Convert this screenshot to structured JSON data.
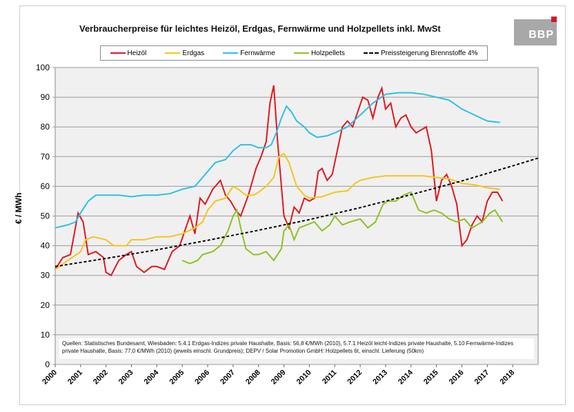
{
  "chart_data": {
    "type": "line",
    "title": "Verbraucherpreise für leichtes Heizöl, Erdgas, Fernwärme und Holzpellets inkl. MwSt",
    "xlabel": "",
    "ylabel": "€ / MWh",
    "xlim": [
      2000,
      2019
    ],
    "ylim": [
      0,
      100
    ],
    "grid": true,
    "legend": "top",
    "xticks": [
      "2000",
      "2001",
      "2002",
      "2003",
      "2004",
      "2005",
      "2006",
      "2007",
      "2008",
      "2009",
      "2010",
      "2011",
      "2012",
      "2013",
      "2014",
      "2015",
      "2016",
      "2017",
      "2018"
    ],
    "yticks": [
      0,
      10,
      20,
      30,
      40,
      50,
      60,
      70,
      80,
      90,
      100
    ],
    "series": [
      {
        "name": "Heizöl",
        "color": "#e3141b",
        "points": [
          [
            2000,
            32
          ],
          [
            2000.3,
            36
          ],
          [
            2000.6,
            37
          ],
          [
            2000.9,
            51
          ],
          [
            2001.1,
            48
          ],
          [
            2001.3,
            37
          ],
          [
            2001.6,
            38
          ],
          [
            2001.9,
            36
          ],
          [
            2002.0,
            31
          ],
          [
            2002.2,
            30
          ],
          [
            2002.5,
            35
          ],
          [
            2002.8,
            37
          ],
          [
            2003.0,
            38
          ],
          [
            2003.2,
            33
          ],
          [
            2003.5,
            31
          ],
          [
            2003.8,
            33
          ],
          [
            2004.0,
            33
          ],
          [
            2004.3,
            32
          ],
          [
            2004.6,
            38
          ],
          [
            2004.9,
            40
          ],
          [
            2005.1,
            45
          ],
          [
            2005.3,
            50
          ],
          [
            2005.5,
            44
          ],
          [
            2005.7,
            56
          ],
          [
            2005.9,
            54
          ],
          [
            2006.2,
            59
          ],
          [
            2006.5,
            62
          ],
          [
            2006.7,
            57
          ],
          [
            2006.9,
            55
          ],
          [
            2007.1,
            52
          ],
          [
            2007.3,
            50
          ],
          [
            2007.6,
            57
          ],
          [
            2007.9,
            66
          ],
          [
            2008.1,
            70
          ],
          [
            2008.3,
            75
          ],
          [
            2008.45,
            88
          ],
          [
            2008.6,
            94
          ],
          [
            2008.75,
            75
          ],
          [
            2008.9,
            60
          ],
          [
            2009.0,
            50
          ],
          [
            2009.2,
            46
          ],
          [
            2009.4,
            53
          ],
          [
            2009.6,
            51
          ],
          [
            2009.8,
            56
          ],
          [
            2010.0,
            55
          ],
          [
            2010.2,
            56
          ],
          [
            2010.35,
            65
          ],
          [
            2010.5,
            66
          ],
          [
            2010.7,
            62
          ],
          [
            2010.9,
            64
          ],
          [
            2011.1,
            72
          ],
          [
            2011.3,
            80
          ],
          [
            2011.5,
            82
          ],
          [
            2011.7,
            80
          ],
          [
            2011.9,
            85
          ],
          [
            2012.1,
            90
          ],
          [
            2012.3,
            89
          ],
          [
            2012.5,
            83
          ],
          [
            2012.7,
            90
          ],
          [
            2012.85,
            93
          ],
          [
            2013.0,
            86
          ],
          [
            2013.2,
            88
          ],
          [
            2013.4,
            80
          ],
          [
            2013.6,
            83
          ],
          [
            2013.8,
            84
          ],
          [
            2014.0,
            80
          ],
          [
            2014.2,
            78
          ],
          [
            2014.4,
            79
          ],
          [
            2014.6,
            80
          ],
          [
            2014.8,
            72
          ],
          [
            2015.0,
            55
          ],
          [
            2015.2,
            62
          ],
          [
            2015.4,
            64
          ],
          [
            2015.6,
            60
          ],
          [
            2015.8,
            54
          ],
          [
            2016.0,
            40
          ],
          [
            2016.2,
            42
          ],
          [
            2016.4,
            47
          ],
          [
            2016.6,
            50
          ],
          [
            2016.8,
            48
          ],
          [
            2017.0,
            55
          ],
          [
            2017.2,
            58
          ],
          [
            2017.4,
            58
          ],
          [
            2017.6,
            55
          ]
        ]
      },
      {
        "name": "Erdgas",
        "color": "#f5c518",
        "points": [
          [
            2000,
            32
          ],
          [
            2000.5,
            35
          ],
          [
            2001.0,
            38
          ],
          [
            2001.2,
            42
          ],
          [
            2001.5,
            43
          ],
          [
            2002.0,
            42
          ],
          [
            2002.3,
            40
          ],
          [
            2002.8,
            40
          ],
          [
            2003.0,
            42
          ],
          [
            2003.5,
            42
          ],
          [
            2004.0,
            43
          ],
          [
            2004.5,
            43
          ],
          [
            2005.0,
            44
          ],
          [
            2005.5,
            46
          ],
          [
            2005.8,
            48
          ],
          [
            2006.0,
            52
          ],
          [
            2006.3,
            55
          ],
          [
            2006.7,
            56
          ],
          [
            2007.0,
            60
          ],
          [
            2007.2,
            59
          ],
          [
            2007.5,
            57
          ],
          [
            2007.8,
            57
          ],
          [
            2008.0,
            58
          ],
          [
            2008.3,
            60
          ],
          [
            2008.6,
            63
          ],
          [
            2008.8,
            70
          ],
          [
            2009.0,
            71
          ],
          [
            2009.2,
            68
          ],
          [
            2009.5,
            60
          ],
          [
            2009.8,
            57
          ],
          [
            2010.0,
            56
          ],
          [
            2010.5,
            56.5
          ],
          [
            2011.0,
            58
          ],
          [
            2011.5,
            58.5
          ],
          [
            2011.8,
            61
          ],
          [
            2012.0,
            62
          ],
          [
            2012.5,
            63
          ],
          [
            2013.0,
            63.5
          ],
          [
            2013.5,
            63.5
          ],
          [
            2014.0,
            63.5
          ],
          [
            2014.5,
            63.5
          ],
          [
            2015.0,
            63
          ],
          [
            2015.5,
            62.5
          ],
          [
            2016.0,
            61
          ],
          [
            2016.5,
            60.5
          ],
          [
            2017.0,
            59.5
          ],
          [
            2017.5,
            59
          ]
        ]
      },
      {
        "name": "Fernwärme",
        "color": "#2ac0e8",
        "points": [
          [
            2000,
            46
          ],
          [
            2000.5,
            47
          ],
          [
            2000.8,
            48
          ],
          [
            2001.0,
            51
          ],
          [
            2001.3,
            55
          ],
          [
            2001.6,
            57
          ],
          [
            2002.0,
            57
          ],
          [
            2002.5,
            57
          ],
          [
            2003.0,
            56.5
          ],
          [
            2003.5,
            57
          ],
          [
            2004.0,
            57
          ],
          [
            2004.5,
            57.5
          ],
          [
            2005.0,
            59
          ],
          [
            2005.5,
            60
          ],
          [
            2005.8,
            63
          ],
          [
            2006.0,
            65
          ],
          [
            2006.3,
            68
          ],
          [
            2006.7,
            69
          ],
          [
            2007.0,
            72
          ],
          [
            2007.3,
            74
          ],
          [
            2007.7,
            74
          ],
          [
            2008.0,
            73
          ],
          [
            2008.3,
            73
          ],
          [
            2008.5,
            74
          ],
          [
            2008.7,
            78
          ],
          [
            2008.9,
            83
          ],
          [
            2009.1,
            87
          ],
          [
            2009.3,
            85
          ],
          [
            2009.5,
            82
          ],
          [
            2009.8,
            80
          ],
          [
            2010.0,
            78
          ],
          [
            2010.3,
            76.5
          ],
          [
            2010.7,
            77
          ],
          [
            2011.0,
            78
          ],
          [
            2011.5,
            80
          ],
          [
            2012.0,
            84
          ],
          [
            2012.5,
            88
          ],
          [
            2013.0,
            91
          ],
          [
            2013.5,
            91.5
          ],
          [
            2014.0,
            91.5
          ],
          [
            2014.5,
            91
          ],
          [
            2015.0,
            90
          ],
          [
            2015.5,
            89
          ],
          [
            2016.0,
            86
          ],
          [
            2016.5,
            84
          ],
          [
            2017.0,
            82
          ],
          [
            2017.5,
            81.5
          ]
        ]
      },
      {
        "name": "Holzpellets",
        "color": "#8cc21e",
        "points": [
          [
            2005.0,
            35
          ],
          [
            2005.3,
            34
          ],
          [
            2005.6,
            35
          ],
          [
            2005.8,
            37
          ],
          [
            2006.2,
            38
          ],
          [
            2006.5,
            40
          ],
          [
            2006.8,
            45
          ],
          [
            2007.0,
            50
          ],
          [
            2007.15,
            52
          ],
          [
            2007.3,
            46
          ],
          [
            2007.5,
            39
          ],
          [
            2007.8,
            37
          ],
          [
            2008.0,
            37
          ],
          [
            2008.3,
            38
          ],
          [
            2008.6,
            35
          ],
          [
            2008.9,
            39
          ],
          [
            2009.0,
            45
          ],
          [
            2009.2,
            47
          ],
          [
            2009.4,
            42
          ],
          [
            2009.6,
            46
          ],
          [
            2009.9,
            47
          ],
          [
            2010.2,
            48
          ],
          [
            2010.5,
            45
          ],
          [
            2010.8,
            47
          ],
          [
            2011.0,
            50
          ],
          [
            2011.3,
            47
          ],
          [
            2011.6,
            48
          ],
          [
            2012.0,
            49
          ],
          [
            2012.3,
            46
          ],
          [
            2012.6,
            48
          ],
          [
            2012.9,
            54
          ],
          [
            2013.1,
            55
          ],
          [
            2013.4,
            55
          ],
          [
            2013.7,
            57
          ],
          [
            2014.0,
            58
          ],
          [
            2014.3,
            52
          ],
          [
            2014.6,
            51
          ],
          [
            2014.9,
            52
          ],
          [
            2015.2,
            51
          ],
          [
            2015.5,
            49
          ],
          [
            2015.8,
            48
          ],
          [
            2016.1,
            49
          ],
          [
            2016.4,
            46
          ],
          [
            2016.8,
            48
          ],
          [
            2017.1,
            51
          ],
          [
            2017.3,
            52
          ],
          [
            2017.6,
            48
          ]
        ]
      },
      {
        "name": "Preissteigerung Brennstoffe 4%",
        "color": "#000000",
        "dashed": true,
        "points": [
          [
            2000,
            33
          ],
          [
            2002,
            35.7
          ],
          [
            2004,
            38.6
          ],
          [
            2006,
            41.8
          ],
          [
            2008,
            45.2
          ],
          [
            2010,
            48.8
          ],
          [
            2012,
            52.8
          ],
          [
            2014,
            57.2
          ],
          [
            2016,
            61.8
          ],
          [
            2018,
            66.9
          ],
          [
            2019,
            69.5
          ]
        ]
      }
    ],
    "annotation": "Quellen: Statistisches Bundesamt, Wiesbaden: 5.4.1 Erdgas-Indizes private Haushalte, Basis: 56,8 €/MWh (2010), 5.7.1 Heizöl leicht-Indizes private Haushalte, 5.10 Fernwärme-Indizes private Haushalte, Basis: 77,0 €/MWh (2010) (jeweils einschl. Grundpreis); DEPV / Solar Promotion GmbH: Holzpellets 6t, einschl. Lieferung (50km)"
  },
  "logo": {
    "text": "BBP",
    "accent": "#d8142a"
  }
}
